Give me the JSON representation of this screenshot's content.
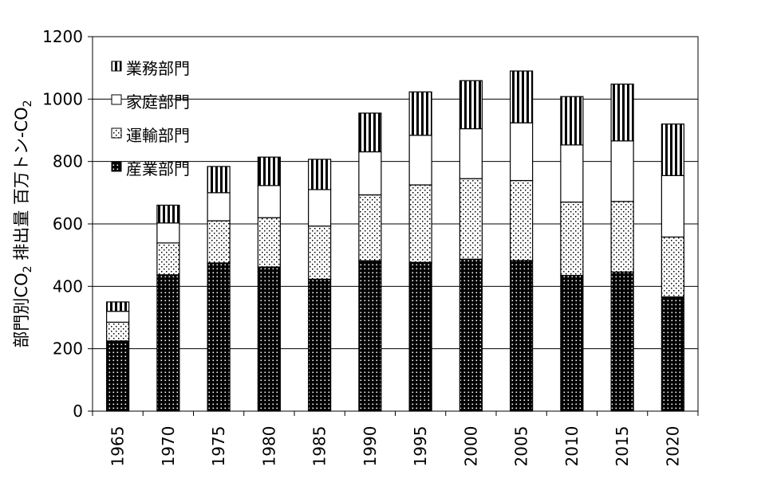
{
  "chart_data": {
    "type": "bar",
    "stacked": true,
    "title": "",
    "xlabel": "",
    "ylabel": {
      "prefix": "部門別CO",
      "sub1": "2",
      "middle": " 排出量 百万トン-CO",
      "sub2": "2"
    },
    "ylim": [
      0,
      1200
    ],
    "yticks": [
      0,
      200,
      400,
      600,
      800,
      1000,
      1200
    ],
    "grid": true,
    "legend_position": "top-left",
    "categories": [
      "1965",
      "1970",
      "1975",
      "1980",
      "1985",
      "1990",
      "1995",
      "2000",
      "2005",
      "2010",
      "2015",
      "2020"
    ],
    "series": [
      {
        "name": "産業部門",
        "pattern": "dense-dots",
        "values": [
          225,
          437,
          475,
          462,
          423,
          482,
          477,
          487,
          483,
          435,
          446,
          366
        ]
      },
      {
        "name": "運輸部門",
        "pattern": "sparse-dots",
        "values": [
          60,
          102,
          135,
          158,
          170,
          211,
          248,
          258,
          256,
          235,
          226,
          192
        ]
      },
      {
        "name": "家庭部門",
        "pattern": "blank",
        "values": [
          35,
          64,
          90,
          103,
          117,
          138,
          159,
          160,
          185,
          183,
          194,
          197
        ]
      },
      {
        "name": "業務部門",
        "pattern": "vertical-stripes",
        "values": [
          30,
          57,
          84,
          91,
          97,
          124,
          139,
          154,
          166,
          155,
          182,
          165
        ]
      }
    ]
  }
}
